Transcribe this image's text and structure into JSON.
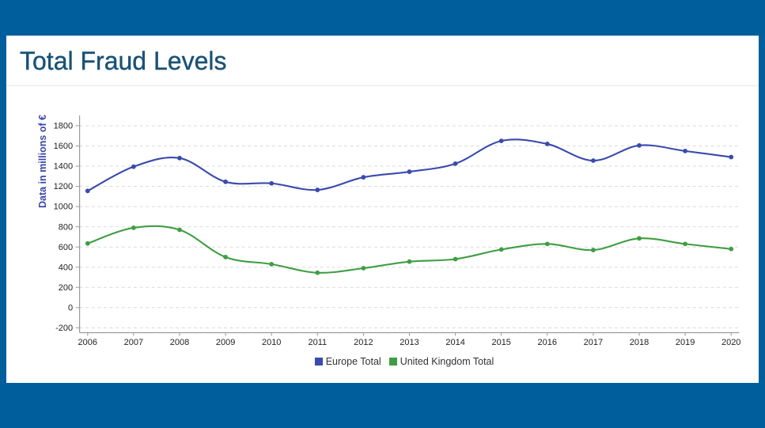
{
  "page": {
    "background_color": "#005E9C",
    "card_background_color": "#FFFFFF"
  },
  "header": {
    "title": "Total Fraud Levels",
    "title_color": "#1A5276"
  },
  "chart_data": {
    "type": "line",
    "title": "Total Fraud Levels",
    "xlabel": "",
    "ylabel": "Data in millions of €",
    "x": [
      2006,
      2007,
      2008,
      2009,
      2010,
      2011,
      2012,
      2013,
      2014,
      2015,
      2016,
      2017,
      2018,
      2019,
      2020
    ],
    "series": [
      {
        "name": "Europe Total",
        "color": "#3A4AAD",
        "values": [
          1155,
          1395,
          1480,
          1245,
          1230,
          1165,
          1290,
          1345,
          1425,
          1650,
          1620,
          1455,
          1605,
          1550,
          1490
        ]
      },
      {
        "name": "United Kingdom Total",
        "color": "#3F9E43",
        "values": [
          635,
          790,
          770,
          500,
          430,
          345,
          390,
          455,
          480,
          575,
          630,
          570,
          685,
          630,
          580
        ]
      }
    ],
    "ylim": [
      -200,
      1800
    ],
    "ytick_interval": 200,
    "yticks": [
      -200,
      0,
      200,
      400,
      600,
      800,
      1000,
      1200,
      1400,
      1600,
      1800
    ],
    "grid": "horizontal-dashed",
    "gridline_color": "#D9D9D9",
    "axis_line_color": "#9A9A9A",
    "tick_label_color": "#222222",
    "ylabel_color": "#3B46A8",
    "legend_position": "bottom",
    "legend_text_color": "#333333",
    "smooth": true,
    "marker": "circle"
  }
}
